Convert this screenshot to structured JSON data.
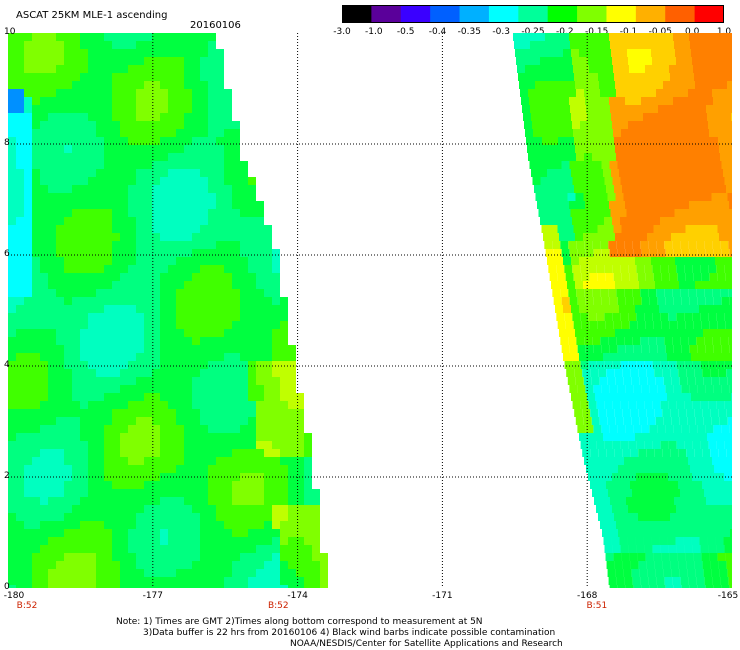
{
  "header": {
    "title": "ASCAT 25KM MLE-1 ascending",
    "date": "20160106"
  },
  "colorbar": {
    "labels": [
      "-3.0",
      "-1.0",
      "-0.5",
      "-0.4",
      "-0.35",
      "-0.3",
      "-0.25",
      "-0.2",
      "-0.15",
      "-0.1",
      "-0.05",
      "0.0",
      "1.0"
    ],
    "colors": [
      "#000000",
      "#5a009a",
      "#3a00ff",
      "#0060ff",
      "#00b0ff",
      "#00ffff",
      "#00ff9a",
      "#00ff00",
      "#80ff00",
      "#ffff00",
      "#ffb000",
      "#ff6000",
      "#ff0000"
    ]
  },
  "axes": {
    "y_ticks": [
      "0",
      "2",
      "4",
      "6",
      "8",
      "10"
    ],
    "x_ticks": [
      "-180",
      "-177",
      "-174",
      "-171",
      "-168",
      "-165"
    ],
    "pass_times": [
      {
        "label": "B:52",
        "lon": -180
      },
      {
        "label": "B:52",
        "lon": -174.4
      },
      {
        "label": "B:51",
        "lon": -167.8
      }
    ]
  },
  "notes": {
    "line1": "Note: 1) Times are GMT 2)Times along bottom correspond to measurement at 5N",
    "line2": "3)Data buffer is 22 hrs from 20160106 4) Black wind barbs indicate possible contamination",
    "line3": "NOAA/NESDIS/Center for Satellite Applications and Research"
  }
}
